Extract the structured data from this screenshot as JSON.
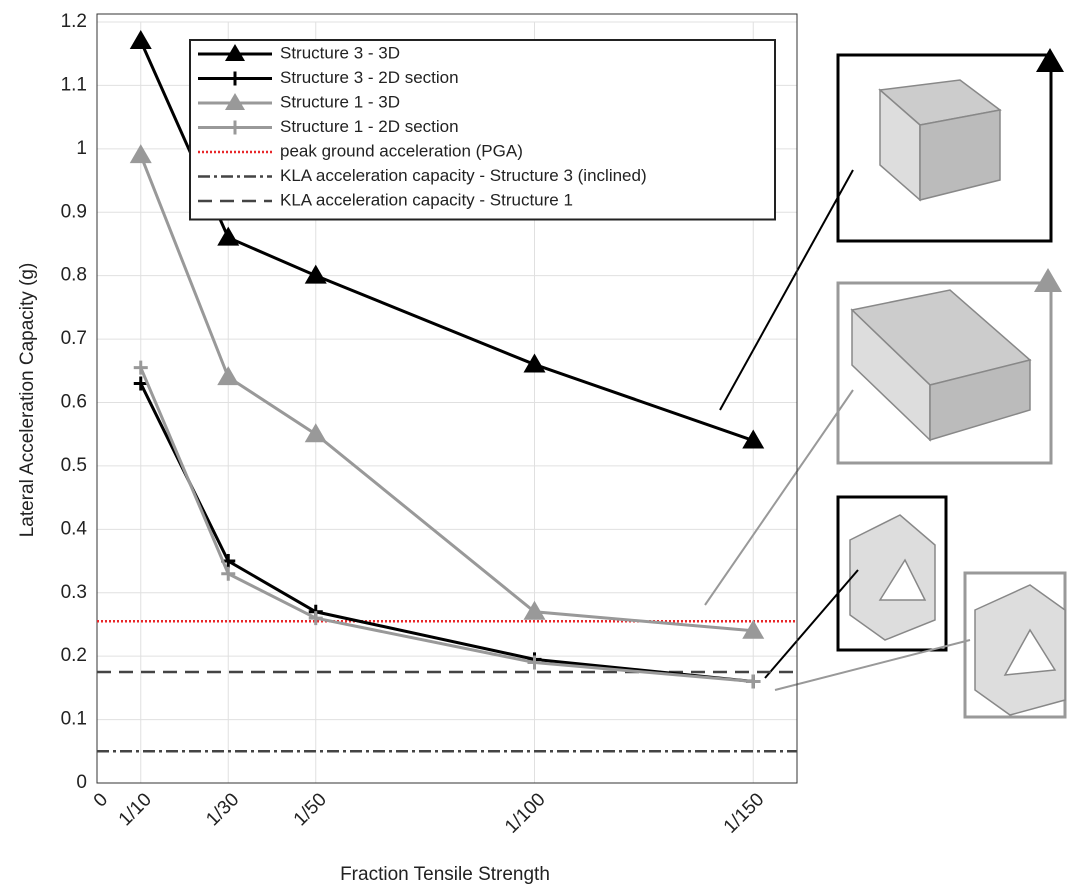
{
  "chart_data": {
    "type": "line",
    "x_label": "Fraction Tensile Strength",
    "y_label": "Lateral Acceleration Capacity (g)",
    "xlim": [
      0,
      160
    ],
    "ylim": [
      0,
      1.2
    ],
    "xticks": [
      0,
      {
        "value": 10,
        "label": "1/10"
      },
      {
        "value": 30,
        "label": "1/30"
      },
      {
        "value": 50,
        "label": "1/50"
      },
      {
        "value": 100,
        "label": "1/100"
      },
      {
        "value": 150,
        "label": "1/150"
      }
    ],
    "yticks": [
      0,
      0.1,
      0.2,
      0.3,
      0.4,
      0.5,
      0.6,
      0.7,
      0.8,
      0.9,
      1,
      1.1,
      1.2
    ],
    "grid": true,
    "x": [
      10,
      30,
      50,
      100,
      150
    ],
    "series": [
      {
        "name": "Structure 3 - 3D",
        "color": "#000000",
        "marker": "triangle",
        "values": [
          1.17,
          0.86,
          0.8,
          0.66,
          0.54
        ]
      },
      {
        "name": "Structure 3 - 2D section",
        "color": "#000000",
        "marker": "plus",
        "values": [
          0.63,
          0.35,
          0.27,
          0.195,
          0.16
        ]
      },
      {
        "name": "Structure 1 - 3D",
        "color": "#999999",
        "marker": "triangle",
        "values": [
          0.99,
          0.64,
          0.55,
          0.27,
          0.24
        ]
      },
      {
        "name": "Structure 1 - 2D section",
        "color": "#999999",
        "marker": "plus",
        "values": [
          0.655,
          0.33,
          0.26,
          0.19,
          0.16
        ]
      }
    ],
    "hlines": [
      {
        "name": "peak ground acceleration (PGA)",
        "color": "#e8272a",
        "style": "dotted",
        "value": 0.255
      },
      {
        "name": "KLA acceleration capacity - Structure 3 (inclined)",
        "color": "#444444",
        "style": "dashdot",
        "value": 0.05
      },
      {
        "name": "KLA acceleration capacity - Structure 1",
        "color": "#444444",
        "style": "dashed",
        "value": 0.175
      }
    ]
  }
}
